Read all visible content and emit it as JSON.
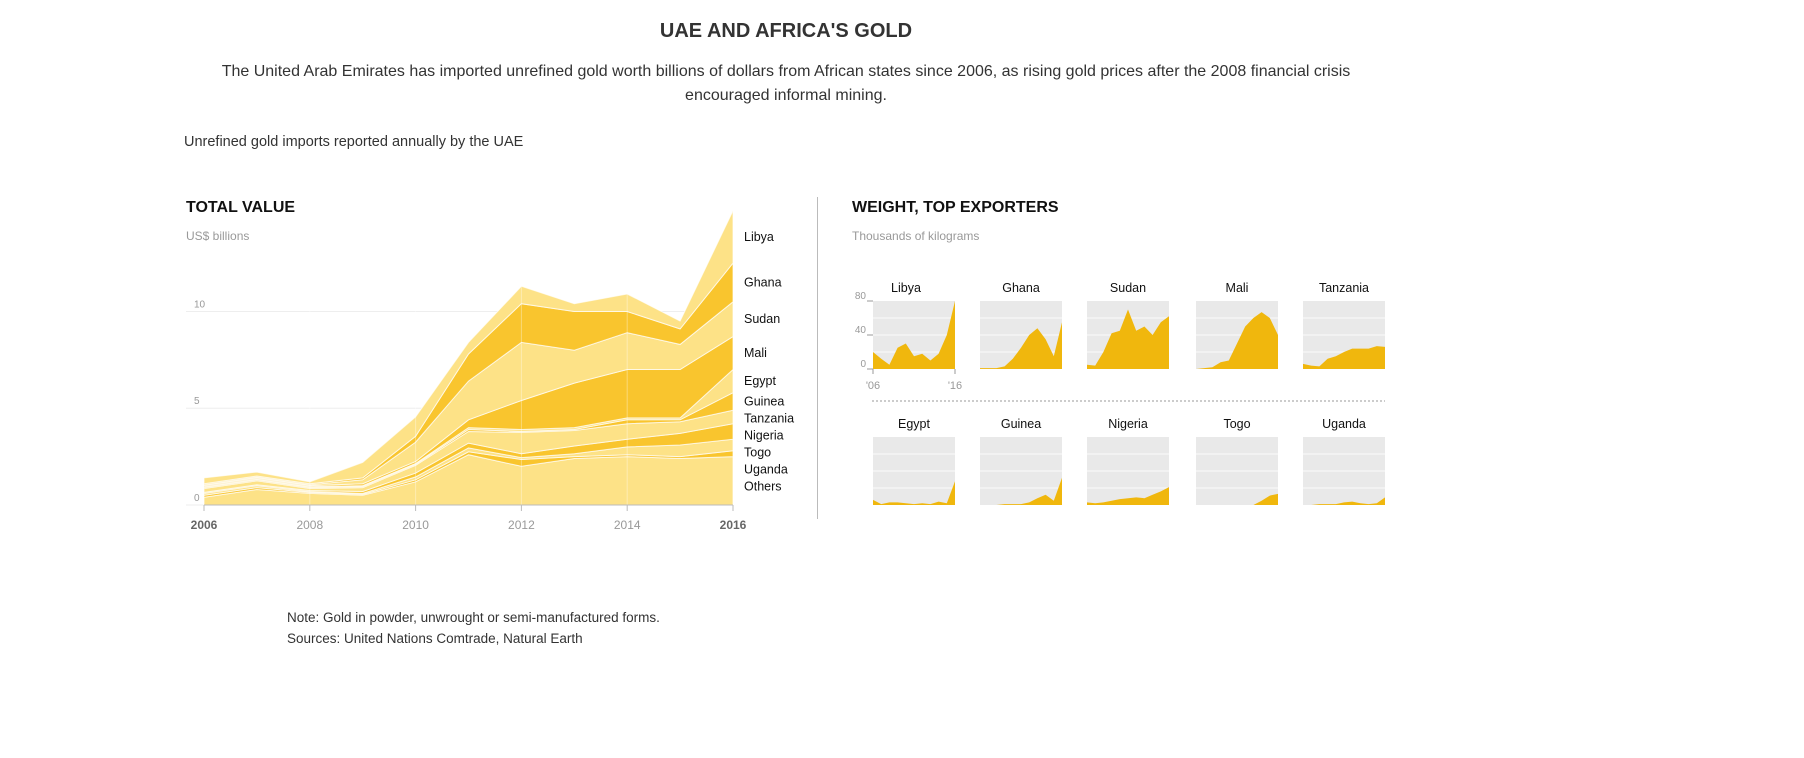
{
  "header": {
    "title": "UAE AND AFRICA'S GOLD",
    "subtitle": "The United Arab Emirates has imported unrefined gold worth billions of dollars from African states since 2006, as rising gold prices after the 2008 financial crisis encouraged informal mining.",
    "lead": "Unrefined gold imports reported annually by the UAE"
  },
  "footer": {
    "note": "Note: Gold in powder, unwrought or semi-manufactured forms.",
    "sources": "Sources: United Nations Comtrade, Natural Earth"
  },
  "colors": {
    "light": "#fde287",
    "dark": "#f9c52e",
    "small_multiple_fill": "#f0b70d",
    "panel_bg": "#e9e9e9"
  },
  "chart_data": [
    {
      "type": "area",
      "stacked": true,
      "title": "TOTAL VALUE",
      "ylabel": "US$ billions",
      "x": [
        2006,
        2007,
        2008,
        2009,
        2010,
        2011,
        2012,
        2013,
        2014,
        2015,
        2016
      ],
      "xticks": [
        "2006",
        "2008",
        "2010",
        "2012",
        "2014",
        "2016"
      ],
      "xtick_values": [
        2006,
        2008,
        2010,
        2012,
        2014,
        2016
      ],
      "yticks": [
        "0",
        "5",
        "10"
      ],
      "ytick_values": [
        0,
        5,
        10
      ],
      "ylim": [
        0,
        15.5
      ],
      "grid": true,
      "series": [
        {
          "name": "Others",
          "values": [
            0.4,
            0.8,
            0.6,
            0.5,
            1.2,
            2.6,
            2.0,
            2.4,
            2.5,
            2.4,
            2.5
          ]
        },
        {
          "name": "Uganda",
          "values": [
            0.1,
            0.1,
            0.05,
            0.05,
            0.1,
            0.15,
            0.35,
            0.1,
            0.1,
            0.1,
            0.3
          ]
        },
        {
          "name": "Togo",
          "values": [
            0.1,
            0.1,
            0.05,
            0.05,
            0.15,
            0.2,
            0.1,
            0.15,
            0.4,
            0.6,
            0.6
          ]
        },
        {
          "name": "Nigeria",
          "values": [
            0.05,
            0.05,
            0.05,
            0.1,
            0.2,
            0.25,
            0.2,
            0.4,
            0.4,
            0.6,
            0.8
          ]
        },
        {
          "name": "Tanzania",
          "values": [
            0.2,
            0.2,
            0.1,
            0.2,
            0.4,
            0.6,
            1.1,
            0.8,
            0.8,
            0.6,
            0.7
          ]
        },
        {
          "name": "Guinea",
          "values": [
            0.05,
            0.05,
            0.05,
            0.05,
            0.05,
            0.1,
            0.05,
            0.05,
            0.2,
            0.1,
            0.9
          ]
        },
        {
          "name": "Egypt",
          "values": [
            0.05,
            0.05,
            0.05,
            0.05,
            0.05,
            0.1,
            0.1,
            0.1,
            0.1,
            0.1,
            1.2
          ]
        },
        {
          "name": "Mali",
          "values": [
            0.05,
            0.05,
            0.05,
            0.1,
            0.1,
            0.4,
            1.5,
            2.3,
            2.5,
            2.5,
            1.7
          ]
        },
        {
          "name": "Sudan",
          "values": [
            0.05,
            0.05,
            0.05,
            0.2,
            1.0,
            2.0,
            3.0,
            1.7,
            1.9,
            1.3,
            1.8
          ]
        },
        {
          "name": "Ghana",
          "values": [
            0.05,
            0.05,
            0.05,
            0.1,
            0.3,
            1.4,
            2.0,
            2.0,
            1.1,
            0.8,
            2.0
          ]
        },
        {
          "name": "Libya",
          "values": [
            0.3,
            0.2,
            0.1,
            0.8,
            1.0,
            0.6,
            0.9,
            0.4,
            0.9,
            0.4,
            2.7
          ]
        }
      ]
    },
    {
      "type": "area",
      "small_multiples": true,
      "title": "WEIGHT, TOP EXPORTERS",
      "ylabel": "Thousands of kilograms",
      "x": [
        2006,
        2007,
        2008,
        2009,
        2010,
        2011,
        2012,
        2013,
        2014,
        2015,
        2016
      ],
      "xticks": [
        "'06",
        "'16"
      ],
      "xtick_values": [
        2006,
        2016
      ],
      "yticks": [
        "0",
        "40",
        "80"
      ],
      "ytick_values": [
        0,
        40,
        80
      ],
      "ylim": [
        0,
        80
      ],
      "series": [
        {
          "name": "Libya",
          "values": [
            20,
            12,
            5,
            25,
            30,
            15,
            18,
            10,
            18,
            40,
            80
          ]
        },
        {
          "name": "Ghana",
          "values": [
            1,
            1,
            1,
            3,
            12,
            25,
            40,
            48,
            35,
            15,
            55
          ]
        },
        {
          "name": "Sudan",
          "values": [
            5,
            4,
            20,
            42,
            45,
            70,
            45,
            50,
            40,
            55,
            62
          ]
        },
        {
          "name": "Mali",
          "values": [
            0,
            1,
            2,
            8,
            10,
            30,
            50,
            60,
            67,
            60,
            40
          ]
        },
        {
          "name": "Tanzania",
          "values": [
            6,
            4,
            3,
            12,
            15,
            20,
            24,
            24,
            24,
            27,
            26
          ]
        },
        {
          "name": "Egypt",
          "values": [
            6,
            1,
            3,
            3,
            2,
            1,
            2,
            1,
            4,
            2,
            28
          ]
        },
        {
          "name": "Guinea",
          "values": [
            0,
            0,
            0,
            1,
            1,
            1,
            3,
            8,
            12,
            5,
            32
          ]
        },
        {
          "name": "Nigeria",
          "values": [
            3,
            2,
            3,
            5,
            7,
            8,
            9,
            8,
            12,
            16,
            21
          ]
        },
        {
          "name": "Togo",
          "values": [
            0,
            0,
            0,
            0,
            0,
            0,
            0,
            0,
            5,
            11,
            13
          ]
        },
        {
          "name": "Uganda",
          "values": [
            0,
            0,
            1,
            1,
            1,
            3,
            4,
            2,
            1,
            2,
            9
          ]
        }
      ]
    }
  ]
}
